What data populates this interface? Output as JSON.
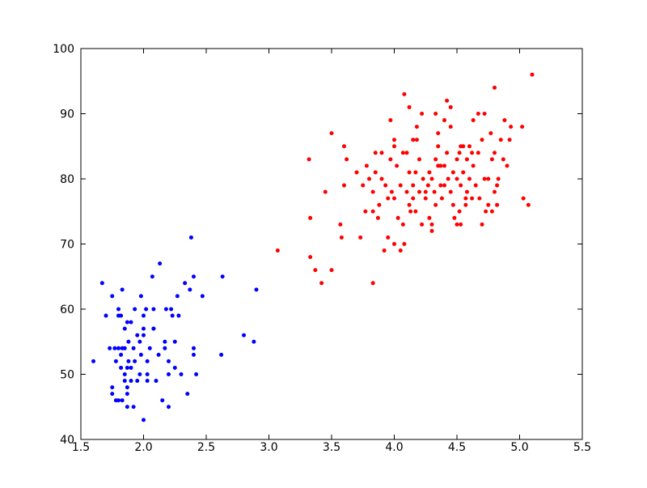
{
  "chart_data": {
    "type": "scatter",
    "xlim": [
      1.5,
      5.5
    ],
    "xticks": [
      1.5,
      {
        "value": 2,
        "label": "2.0"
      },
      2.5,
      {
        "value": 3,
        "label": "3.0"
      },
      3.5,
      {
        "value": 4,
        "label": "4.0"
      },
      4.5,
      {
        "value": 5,
        "label": "5.0"
      },
      5.5
    ],
    "ylim": [
      40,
      100
    ],
    "yticks": [
      40,
      50,
      60,
      70,
      80,
      90,
      100
    ],
    "grid": false,
    "series": [
      {
        "color": "#0000ff",
        "x": [
          1.6,
          1.67,
          1.7,
          1.73,
          1.75,
          1.75,
          1.75,
          1.77,
          1.78,
          1.78,
          1.8,
          1.8,
          1.8,
          1.8,
          1.82,
          1.82,
          1.82,
          1.83,
          1.83,
          1.83,
          1.85,
          1.85,
          1.85,
          1.85,
          1.87,
          1.87,
          1.87,
          1.87,
          1.87,
          1.88,
          1.88,
          1.9,
          1.9,
          1.9,
          1.92,
          1.92,
          1.93,
          1.95,
          1.95,
          1.97,
          1.98,
          1.98,
          2.0,
          2.0,
          2.0,
          2.02,
          2.03,
          2.03,
          2.03,
          2.05,
          2.07,
          2.08,
          2.08,
          2.1,
          2.12,
          2.13,
          2.15,
          2.17,
          2.18,
          2.2,
          2.2,
          2.2,
          2.22,
          2.23,
          2.25,
          2.25,
          2.27,
          2.28,
          2.3,
          2.33,
          2.35,
          2.37,
          2.38,
          2.4,
          2.4,
          2.4,
          2.42,
          2.47,
          2.62,
          2.63,
          2.8,
          2.88,
          2.9,
          2.0,
          2.08,
          1.93,
          1.97,
          2.17
        ],
        "values": [
          52,
          64,
          59,
          54,
          62,
          48,
          47,
          54,
          46,
          52,
          60,
          59,
          54,
          46,
          59,
          51,
          53,
          54,
          46,
          63,
          57,
          54,
          50,
          49,
          58,
          51,
          48,
          47,
          45,
          55,
          52,
          58,
          51,
          49,
          54,
          45,
          60,
          56,
          49,
          55,
          62,
          53,
          59,
          56,
          43,
          60,
          52,
          50,
          49,
          54,
          65,
          57,
          60,
          49,
          53,
          67,
          46,
          55,
          60,
          52,
          45,
          50,
          60,
          59,
          55,
          51,
          62,
          59,
          50,
          64,
          47,
          63,
          71,
          65,
          53,
          54,
          50,
          62,
          53,
          65,
          56,
          55,
          63,
          57,
          57,
          52,
          50,
          54
        ]
      },
      {
        "color": "#ff0000",
        "x": [
          3.07,
          3.32,
          3.33,
          3.33,
          3.37,
          3.42,
          3.45,
          3.5,
          3.5,
          3.57,
          3.58,
          3.6,
          3.6,
          3.62,
          3.7,
          3.73,
          3.75,
          3.77,
          3.78,
          3.8,
          3.83,
          3.83,
          3.83,
          3.85,
          3.85,
          3.87,
          3.88,
          3.9,
          3.9,
          3.92,
          3.93,
          3.95,
          3.95,
          3.97,
          3.97,
          3.98,
          4.0,
          4.0,
          4.0,
          4.0,
          4.02,
          4.03,
          4.05,
          4.05,
          4.07,
          4.07,
          4.08,
          4.08,
          4.1,
          4.1,
          4.12,
          4.12,
          4.12,
          4.13,
          4.15,
          4.15,
          4.15,
          4.17,
          4.17,
          4.18,
          4.18,
          4.2,
          4.2,
          4.22,
          4.23,
          4.25,
          4.25,
          4.27,
          4.28,
          4.28,
          4.3,
          4.3,
          4.3,
          4.32,
          4.33,
          4.33,
          4.33,
          4.35,
          4.35,
          4.37,
          4.37,
          4.38,
          4.4,
          4.4,
          4.4,
          4.42,
          4.42,
          4.43,
          4.45,
          4.45,
          4.47,
          4.47,
          4.48,
          4.5,
          4.5,
          4.5,
          4.52,
          4.52,
          4.53,
          4.53,
          4.55,
          4.55,
          4.57,
          4.57,
          4.58,
          4.58,
          4.6,
          4.6,
          4.62,
          4.62,
          4.63,
          4.63,
          4.65,
          4.67,
          4.67,
          4.68,
          4.7,
          4.7,
          4.72,
          4.72,
          4.73,
          4.75,
          4.75,
          4.77,
          4.78,
          4.78,
          4.8,
          4.8,
          4.8,
          4.82,
          4.82,
          4.83,
          4.85,
          4.87,
          4.88,
          4.9,
          4.92,
          4.93,
          5.02,
          5.03,
          5.07,
          5.1,
          4.45,
          4.53,
          4.22,
          4.35
        ],
        "values": [
          69,
          83,
          74,
          68,
          66,
          64,
          78,
          66,
          87,
          73,
          71,
          79,
          85,
          83,
          81,
          71,
          79,
          75,
          82,
          80,
          75,
          64,
          78,
          81,
          84,
          74,
          76,
          84,
          80,
          69,
          79,
          71,
          77,
          83,
          89,
          78,
          85,
          77,
          70,
          86,
          82,
          74,
          79,
          69,
          73,
          84,
          70,
          93,
          78,
          84,
          91,
          81,
          76,
          75,
          86,
          79,
          77,
          75,
          81,
          88,
          86,
          83,
          78,
          73,
          80,
          77,
          78,
          79,
          81,
          74,
          80,
          73,
          72,
          78,
          90,
          83,
          76,
          82,
          85,
          79,
          82,
          77,
          89,
          79,
          82,
          92,
          84,
          80,
          88,
          78,
          81,
          76,
          74,
          83,
          80,
          73,
          75,
          84,
          79,
          73,
          85,
          81,
          77,
          76,
          78,
          83,
          85,
          80,
          77,
          84,
          89,
          82,
          79,
          90,
          84,
          77,
          86,
          73,
          80,
          90,
          75,
          80,
          76,
          87,
          83,
          75,
          94,
          78,
          84,
          79,
          76,
          80,
          86,
          83,
          89,
          82,
          86,
          88,
          88,
          77,
          76,
          96,
          91,
          85,
          90,
          87
        ]
      }
    ]
  }
}
